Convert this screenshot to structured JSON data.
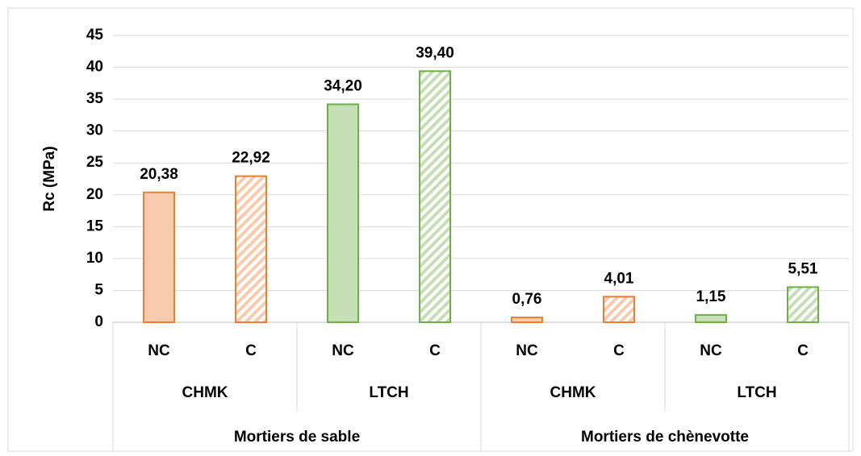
{
  "chart_data": {
    "type": "bar",
    "ylabel": "Rc (MPa)",
    "categories": [
      "NC",
      "C",
      "NC",
      "C",
      "NC",
      "C",
      "NC",
      "C"
    ],
    "groups": [
      "CHMK",
      "LTCH",
      "CHMK",
      "LTCH"
    ],
    "supergroups": [
      "Mortiers de sable",
      "Mortiers de chènevotte"
    ],
    "values": [
      20.38,
      22.92,
      34.2,
      39.4,
      0.76,
      4.01,
      1.15,
      5.51
    ],
    "value_labels": [
      "20,38",
      "22,92",
      "34,20",
      "39,40",
      "0,76",
      "4,01",
      "1,15",
      "5,51"
    ],
    "colors": [
      "#ed7d31",
      "#ed7d31",
      "#70ad47",
      "#70ad47",
      "#ed7d31",
      "#ed7d31",
      "#70ad47",
      "#70ad47"
    ],
    "patterns": [
      "solid",
      "hatched",
      "solid",
      "hatched",
      "solid",
      "hatched",
      "solid",
      "hatched"
    ],
    "ylim": [
      0,
      45
    ],
    "yticks": [
      0,
      5,
      10,
      15,
      20,
      25,
      30,
      35,
      40,
      45
    ],
    "grid": true
  }
}
